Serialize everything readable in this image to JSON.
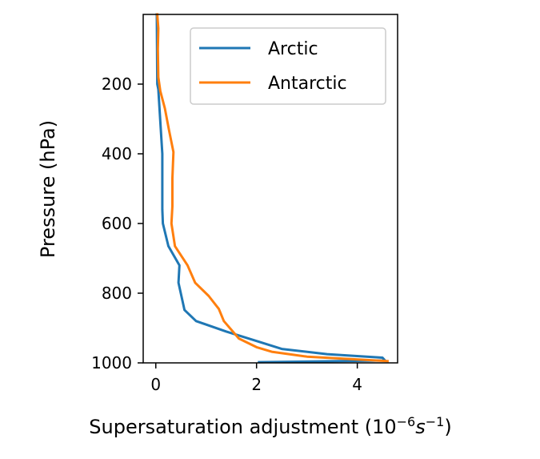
{
  "chart_data": {
    "type": "line",
    "xlabel": "Supersaturation adjustment (10",
    "xlabel_exp1": "−6",
    "xlabel_unit": "s",
    "xlabel_exp2": "−1",
    "xlabel_close": ")",
    "ylabel": "Pressure (hPa)",
    "xlim": [
      -0.25,
      4.8
    ],
    "ylim": [
      1000,
      0
    ],
    "y_inverted": true,
    "xticks": [
      0,
      2,
      4
    ],
    "yticks": [
      200,
      400,
      600,
      800,
      1000
    ],
    "legend": {
      "placement": "upper right"
    },
    "series": [
      {
        "name": "Arctic",
        "color": "#1f77b4",
        "points": [
          [
            0.02,
            0
          ],
          [
            0.03,
            200
          ],
          [
            0.05,
            215
          ],
          [
            0.1,
            330
          ],
          [
            0.13,
            400
          ],
          [
            0.13,
            470
          ],
          [
            0.13,
            560
          ],
          [
            0.14,
            600
          ],
          [
            0.25,
            665
          ],
          [
            0.47,
            720
          ],
          [
            0.45,
            770
          ],
          [
            0.57,
            848
          ],
          [
            0.8,
            880
          ],
          [
            1.4,
            910
          ],
          [
            1.95,
            935
          ],
          [
            2.5,
            960
          ],
          [
            3.4,
            975
          ],
          [
            4.5,
            985
          ],
          [
            4.55,
            993
          ],
          [
            2.05,
            998
          ]
        ]
      },
      {
        "name": "Antarctic",
        "color": "#ff7f0e",
        "points": [
          [
            0.03,
            0
          ],
          [
            0.05,
            40
          ],
          [
            0.04,
            100
          ],
          [
            0.05,
            180
          ],
          [
            0.09,
            220
          ],
          [
            0.18,
            270
          ],
          [
            0.26,
            330
          ],
          [
            0.35,
            395
          ],
          [
            0.33,
            470
          ],
          [
            0.33,
            550
          ],
          [
            0.31,
            600
          ],
          [
            0.38,
            665
          ],
          [
            0.63,
            720
          ],
          [
            0.78,
            770
          ],
          [
            1.05,
            808
          ],
          [
            1.25,
            845
          ],
          [
            1.35,
            880
          ],
          [
            1.65,
            930
          ],
          [
            2.0,
            955
          ],
          [
            2.3,
            968
          ],
          [
            3.0,
            982
          ],
          [
            4.6,
            995
          ]
        ]
      }
    ]
  }
}
